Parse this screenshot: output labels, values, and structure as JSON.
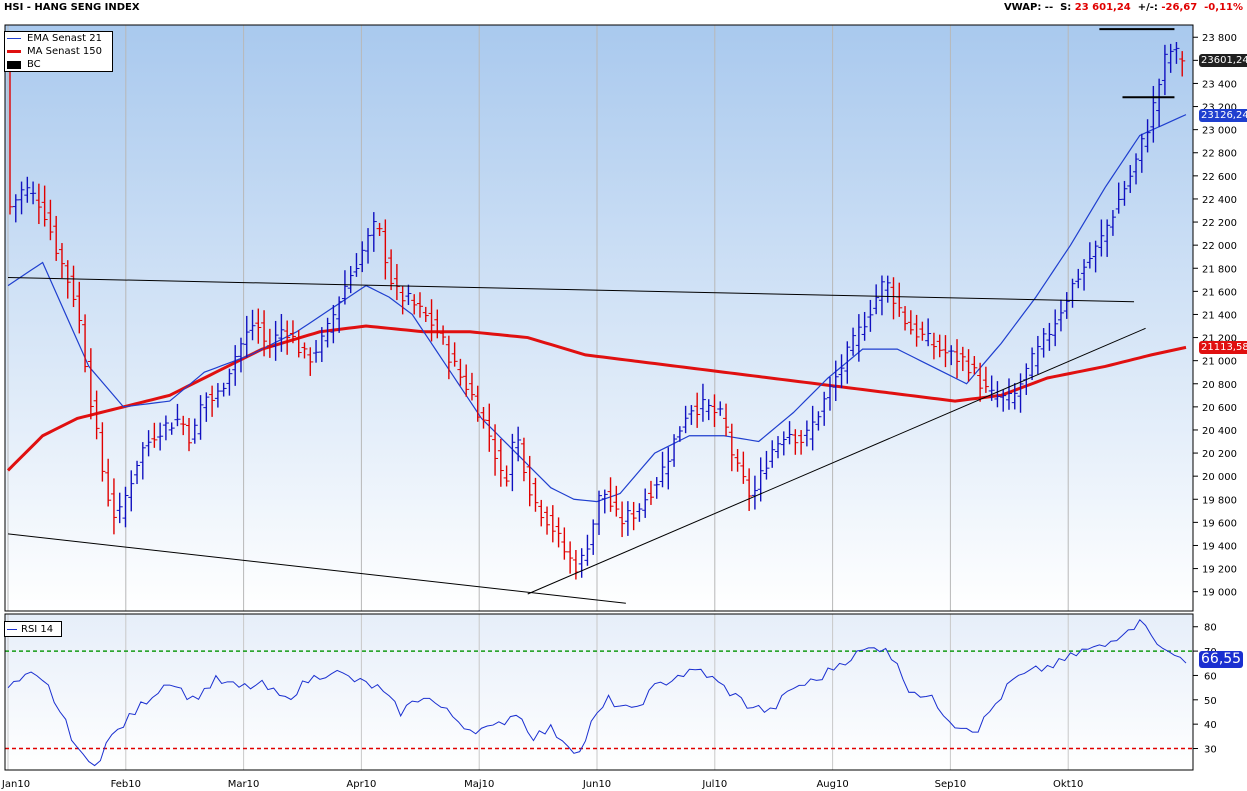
{
  "header": {
    "title": "HSI - HANG SENG INDEX",
    "vwap_label": "VWAP: --",
    "s_label": "S:",
    "s_value": "23 601,24",
    "change_label": "+/-:",
    "change_value": "-26,67",
    "change_pct": "-0,11%"
  },
  "legend": {
    "ema": "EMA  Senast 21",
    "ma": "MA  Senast 150",
    "bc": "BC"
  },
  "rsi_legend": "RSI  14",
  "tags": {
    "last_price": "23601,24",
    "ema_value": "23126,24",
    "ma_value": "21113,58",
    "rsi_value": "66,55"
  },
  "colors": {
    "bg_top": "#a9c9ee",
    "bg_bottom": "#ffffff",
    "up": "#1010c0",
    "down": "#e00000",
    "ema": "#1f3fcf",
    "ma": "#e01010",
    "rsi": "#1a2fd0",
    "overbought": "#139a13",
    "oversold": "#e00000"
  },
  "chart_data": [
    {
      "type": "line",
      "title": "HSI - HANG SENG INDEX",
      "x_months": [
        "Jan10",
        "Feb10",
        "Mar10",
        "Apr10",
        "Maj10",
        "Jun10",
        "Jul10",
        "Aug10",
        "Sep10",
        "Okt10"
      ],
      "y_ticks": [
        19000,
        19200,
        19400,
        19600,
        19800,
        20000,
        20200,
        20400,
        20600,
        20800,
        21000,
        21200,
        21400,
        21600,
        21800,
        22000,
        22200,
        22400,
        22600,
        22800,
        23000,
        23200,
        23400,
        23600,
        23800
      ],
      "ylim": [
        18850,
        23880
      ],
      "trading_days": 204,
      "price_keypoints": [
        [
          0,
          22300
        ],
        [
          3,
          22500
        ],
        [
          6,
          22350
        ],
        [
          9,
          21900
        ],
        [
          12,
          21500
        ],
        [
          15,
          20500
        ],
        [
          17,
          19900
        ],
        [
          19,
          19600
        ],
        [
          21,
          19900
        ],
        [
          23,
          20200
        ],
        [
          26,
          20400
        ],
        [
          30,
          20500
        ],
        [
          32,
          20300
        ],
        [
          34,
          20700
        ],
        [
          36,
          20650
        ],
        [
          40,
          21100
        ],
        [
          43,
          21350
        ],
        [
          45,
          21100
        ],
        [
          48,
          21300
        ],
        [
          52,
          21000
        ],
        [
          55,
          21200
        ],
        [
          58,
          21600
        ],
        [
          62,
          22000
        ],
        [
          64,
          22200
        ],
        [
          67,
          21600
        ],
        [
          70,
          21500
        ],
        [
          74,
          21300
        ],
        [
          78,
          20900
        ],
        [
          80,
          20750
        ],
        [
          84,
          20300
        ],
        [
          86,
          19900
        ],
        [
          88,
          20400
        ],
        [
          91,
          19800
        ],
        [
          94,
          19600
        ],
        [
          97,
          19300
        ],
        [
          99,
          19200
        ],
        [
          101,
          19500
        ],
        [
          103,
          19900
        ],
        [
          106,
          19600
        ],
        [
          109,
          19700
        ],
        [
          113,
          20000
        ],
        [
          118,
          20600
        ],
        [
          121,
          20600
        ],
        [
          124,
          20500
        ],
        [
          126,
          20100
        ],
        [
          129,
          19800
        ],
        [
          132,
          20200
        ],
        [
          135,
          20400
        ],
        [
          138,
          20300
        ],
        [
          141,
          20600
        ],
        [
          145,
          21000
        ],
        [
          149,
          21400
        ],
        [
          152,
          21700
        ],
        [
          156,
          21300
        ],
        [
          160,
          21150
        ],
        [
          163,
          21050
        ],
        [
          166,
          21000
        ],
        [
          170,
          20700
        ],
        [
          174,
          20650
        ],
        [
          177,
          20950
        ],
        [
          181,
          21300
        ],
        [
          185,
          21700
        ],
        [
          189,
          22000
        ],
        [
          193,
          22450
        ],
        [
          195,
          22650
        ],
        [
          198,
          23100
        ],
        [
          201,
          23700
        ],
        [
          204,
          23600
        ]
      ],
      "ema_keypoints": [
        [
          0,
          21650
        ],
        [
          6,
          21850
        ],
        [
          10,
          21400
        ],
        [
          14,
          20950
        ],
        [
          20,
          20600
        ],
        [
          28,
          20650
        ],
        [
          34,
          20900
        ],
        [
          42,
          21050
        ],
        [
          50,
          21250
        ],
        [
          56,
          21450
        ],
        [
          62,
          21650
        ],
        [
          66,
          21550
        ],
        [
          70,
          21400
        ],
        [
          76,
          20950
        ],
        [
          82,
          20500
        ],
        [
          88,
          20200
        ],
        [
          94,
          19900
        ],
        [
          98,
          19800
        ],
        [
          102,
          19780
        ],
        [
          106,
          19850
        ],
        [
          112,
          20200
        ],
        [
          118,
          20350
        ],
        [
          124,
          20350
        ],
        [
          130,
          20300
        ],
        [
          136,
          20550
        ],
        [
          142,
          20850
        ],
        [
          148,
          21100
        ],
        [
          154,
          21100
        ],
        [
          160,
          20950
        ],
        [
          166,
          20800
        ],
        [
          172,
          21150
        ],
        [
          178,
          21550
        ],
        [
          184,
          22000
        ],
        [
          190,
          22500
        ],
        [
          196,
          22950
        ],
        [
          204,
          23130
        ]
      ],
      "ma_keypoints": [
        [
          0,
          20050
        ],
        [
          6,
          20350
        ],
        [
          12,
          20500
        ],
        [
          20,
          20600
        ],
        [
          28,
          20700
        ],
        [
          36,
          20900
        ],
        [
          44,
          21100
        ],
        [
          54,
          21250
        ],
        [
          62,
          21300
        ],
        [
          72,
          21250
        ],
        [
          80,
          21250
        ],
        [
          90,
          21200
        ],
        [
          100,
          21050
        ],
        [
          108,
          21000
        ],
        [
          116,
          20950
        ],
        [
          124,
          20900
        ],
        [
          132,
          20850
        ],
        [
          140,
          20800
        ],
        [
          148,
          20750
        ],
        [
          156,
          20700
        ],
        [
          164,
          20650
        ],
        [
          172,
          20700
        ],
        [
          180,
          20850
        ],
        [
          190,
          20950
        ],
        [
          198,
          21050
        ],
        [
          204,
          21115
        ]
      ],
      "support_lines": [
        {
          "from": [
            0,
            21720
          ],
          "to": [
            195,
            21510
          ]
        },
        {
          "from": [
            0,
            19500
          ],
          "to": [
            107,
            18900
          ]
        },
        {
          "from": [
            90,
            18980
          ],
          "to": [
            197,
            21280
          ]
        },
        {
          "from": [
            189,
            23870
          ],
          "to": [
            202,
            23870
          ]
        },
        {
          "from": [
            193,
            23280
          ],
          "to": [
            202,
            23280
          ]
        }
      ],
      "last_price": 23601.24,
      "ema_last": 23126.24,
      "ma_last": 21113.58
    },
    {
      "type": "line",
      "title": "RSI 14",
      "y_ticks": [
        30,
        40,
        50,
        60,
        70,
        80
      ],
      "ylim": [
        22,
        84
      ],
      "overbought": 70,
      "oversold": 30,
      "rsi_keypoints": [
        [
          0,
          55
        ],
        [
          4,
          60
        ],
        [
          7,
          55
        ],
        [
          10,
          40
        ],
        [
          13,
          26
        ],
        [
          15,
          22
        ],
        [
          17,
          32
        ],
        [
          20,
          40
        ],
        [
          24,
          50
        ],
        [
          28,
          58
        ],
        [
          32,
          50
        ],
        [
          36,
          58
        ],
        [
          40,
          55
        ],
        [
          44,
          56
        ],
        [
          48,
          50
        ],
        [
          52,
          58
        ],
        [
          56,
          62
        ],
        [
          60,
          58
        ],
        [
          64,
          55
        ],
        [
          68,
          45
        ],
        [
          72,
          52
        ],
        [
          76,
          45
        ],
        [
          80,
          38
        ],
        [
          84,
          38
        ],
        [
          88,
          45
        ],
        [
          91,
          35
        ],
        [
          94,
          38
        ],
        [
          97,
          32
        ],
        [
          99,
          28
        ],
        [
          101,
          40
        ],
        [
          104,
          50
        ],
        [
          108,
          45
        ],
        [
          112,
          55
        ],
        [
          116,
          60
        ],
        [
          120,
          62
        ],
        [
          124,
          55
        ],
        [
          128,
          48
        ],
        [
          132,
          45
        ],
        [
          136,
          55
        ],
        [
          140,
          58
        ],
        [
          144,
          65
        ],
        [
          148,
          70
        ],
        [
          152,
          72
        ],
        [
          156,
          55
        ],
        [
          160,
          50
        ],
        [
          164,
          40
        ],
        [
          168,
          38
        ],
        [
          170,
          45
        ],
        [
          174,
          58
        ],
        [
          178,
          62
        ],
        [
          182,
          65
        ],
        [
          186,
          70
        ],
        [
          190,
          72
        ],
        [
          194,
          80
        ],
        [
          197,
          82
        ],
        [
          200,
          70
        ],
        [
          204,
          66.55
        ]
      ],
      "last_value": 66.55
    }
  ]
}
